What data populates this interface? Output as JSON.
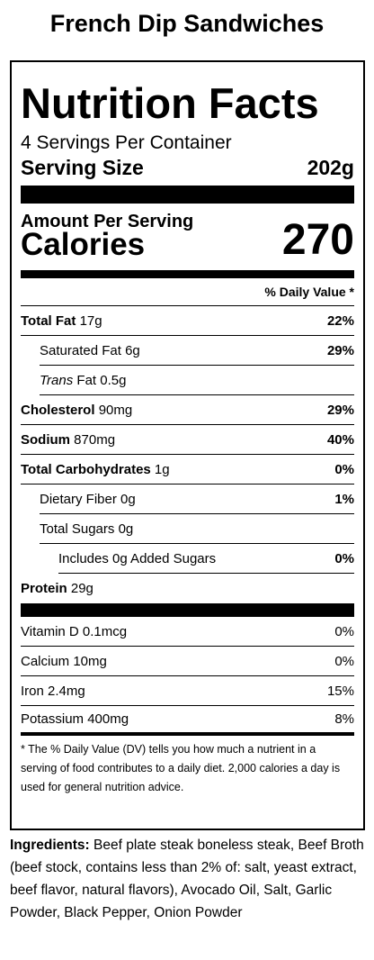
{
  "product": {
    "title": "French Dip Sandwiches"
  },
  "label": {
    "title": "Nutrition Facts",
    "servings_per_container": "4 Servings Per Container",
    "serving_size_label": "Serving Size",
    "serving_size_value": "202g",
    "amount_per_serving": "Amount Per Serving",
    "calories_label": "Calories",
    "calories_value": "270",
    "daily_value_header": "% Daily Value *",
    "nutrients": [
      {
        "name": "Total Fat",
        "amount": "17g",
        "dv": "22%"
      },
      {
        "name": "Saturated Fat",
        "amount": "6g",
        "dv": "29%"
      },
      {
        "name": "Trans",
        "name_suffix": "Fat",
        "amount": "0.5g",
        "dv": ""
      },
      {
        "name": "Cholesterol",
        "amount": "90mg",
        "dv": "29%"
      },
      {
        "name": "Sodium",
        "amount": "870mg",
        "dv": "40%"
      },
      {
        "name": "Total Carbohydrates",
        "amount": "1g",
        "dv": "0%"
      },
      {
        "name": "Dietary Fiber",
        "amount": "0g",
        "dv": "1%"
      },
      {
        "name": "Total Sugars",
        "amount": "0g",
        "dv": ""
      },
      {
        "name": "Includes 0g Added Sugars",
        "amount": "",
        "dv": "0%"
      },
      {
        "name": "Protein",
        "amount": "29g",
        "dv": ""
      }
    ],
    "vitamins": [
      {
        "text": "Vitamin D 0.1mcg",
        "dv": "0%"
      },
      {
        "text": "Calcium 10mg",
        "dv": "0%"
      },
      {
        "text": "Iron 2.4mg",
        "dv": "15%"
      },
      {
        "text": "Potassium 400mg",
        "dv": "8%"
      }
    ],
    "footnote": "* The % Daily Value (DV) tells you how much a nutrient in a serving of food contributes to a daily diet. 2,000 calories a day is used for general nutrition advice."
  },
  "ingredients": {
    "label": "Ingredients:",
    "text": " Beef plate steak boneless steak, Beef Broth (beef stock, contains less than 2% of: salt, yeast extract, beef flavor, natural flavors), Avocado Oil, Salt, Garlic Powder, Black Pepper, Onion Powder"
  }
}
